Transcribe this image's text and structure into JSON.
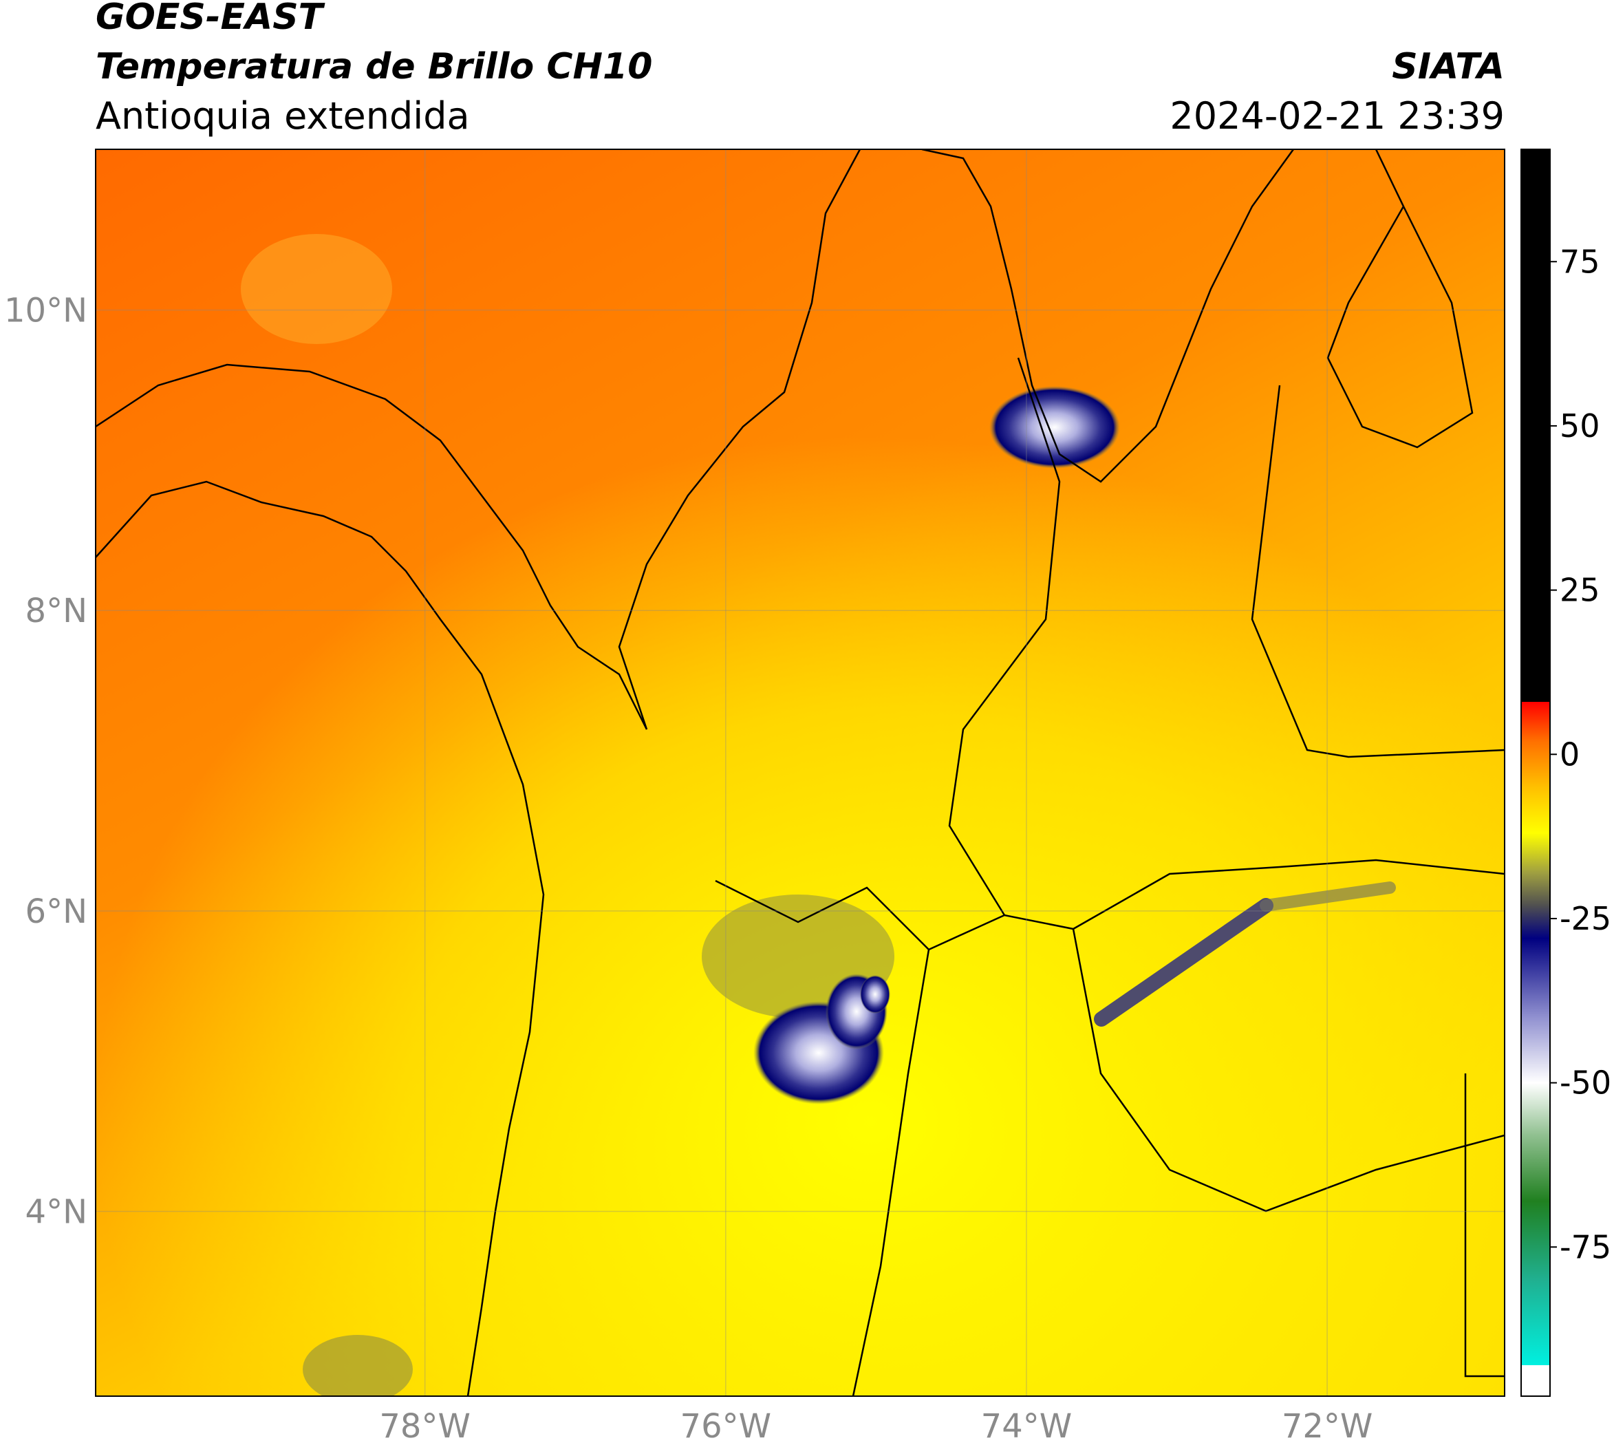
{
  "header": {
    "satellite": "GOES-EAST",
    "product": "Temperatura de Brillo CH10",
    "region": "Antioquia extendida",
    "source": "SIATA",
    "timestamp": "2024-02-21 23:39"
  },
  "map": {
    "latlim": [
      2.77,
      11.07
    ],
    "lonlim": [
      -80.19,
      -70.82
    ],
    "latticks": [
      {
        "value": 10,
        "label": "10°N"
      },
      {
        "value": 8,
        "label": "8°N"
      },
      {
        "value": 6,
        "label": "6°N"
      },
      {
        "value": 4,
        "label": "4°N"
      }
    ],
    "lonticks": [
      {
        "value": -78,
        "label": "78°W"
      },
      {
        "value": -76,
        "label": "76°W"
      },
      {
        "value": -74,
        "label": "74°W"
      },
      {
        "value": -72,
        "label": "72°W"
      }
    ],
    "grid": true
  },
  "colorbar": {
    "clim": [
      -97.7,
      92.1
    ],
    "ticks": [
      75,
      50,
      25,
      0,
      -25,
      -50,
      -75
    ],
    "colormap": [
      [
        -97.7,
        "#ffffff"
      ],
      [
        -93,
        "#ffffff"
      ],
      [
        -93,
        "#00f0e0"
      ],
      [
        -80,
        "#20b090"
      ],
      [
        -68,
        "#208020"
      ],
      [
        -58,
        "#90c090"
      ],
      [
        -50,
        "#ffffff"
      ],
      [
        -40,
        "#9090d0"
      ],
      [
        -28,
        "#000080"
      ],
      [
        -23,
        "#505050"
      ],
      [
        -18,
        "#a0a040"
      ],
      [
        -12,
        "#ffff00"
      ],
      [
        -5,
        "#ffc000"
      ],
      [
        2,
        "#ff7000"
      ],
      [
        8,
        "#ff0000"
      ],
      [
        8,
        "#000000"
      ],
      [
        92.1,
        "#000000"
      ]
    ]
  }
}
